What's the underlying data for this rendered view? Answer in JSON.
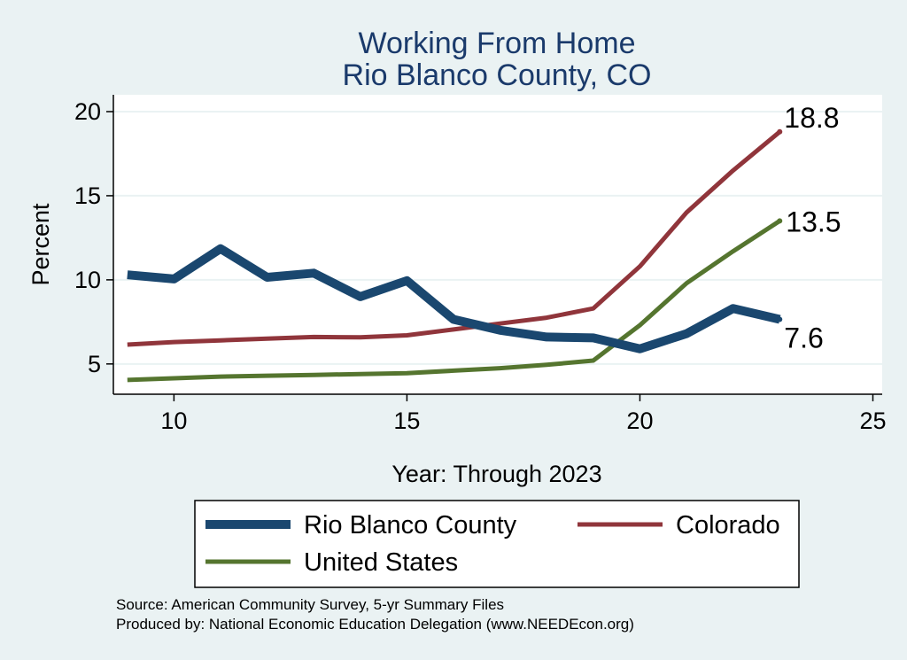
{
  "chart_data": {
    "type": "line",
    "title": [
      "Working From Home",
      "Rio Blanco County, CO"
    ],
    "xlabel": "Year: Through 2023",
    "ylabel": "Percent",
    "xlim": [
      8.7,
      25.2
    ],
    "ylim": [
      3.2,
      21.0
    ],
    "xticks": [
      10,
      15,
      20,
      25
    ],
    "yticks": [
      5,
      10,
      15,
      20
    ],
    "grid": true,
    "legend_position": "bottom",
    "series": [
      {
        "name": "Rio Blanco County",
        "color": "#1a476f",
        "width": 10,
        "x": [
          9,
          10,
          11,
          12,
          13,
          14,
          15,
          16,
          17,
          18,
          19,
          20,
          21,
          22,
          23
        ],
        "y": [
          10.3,
          10.05,
          11.85,
          10.15,
          10.4,
          9.0,
          9.95,
          7.65,
          7.0,
          6.6,
          6.55,
          5.9,
          6.8,
          8.3,
          7.65
        ],
        "end_label": "7.6"
      },
      {
        "name": "Colorado",
        "color": "#90353b",
        "width": 5,
        "x": [
          9,
          10,
          11,
          12,
          13,
          14,
          15,
          16,
          17,
          18,
          19,
          20,
          21,
          22,
          23
        ],
        "y": [
          6.15,
          6.3,
          6.4,
          6.5,
          6.6,
          6.58,
          6.7,
          7.05,
          7.4,
          7.75,
          8.3,
          10.8,
          14.0,
          16.5,
          18.8
        ],
        "end_label": "18.8"
      },
      {
        "name": "United States",
        "color": "#55752f",
        "width": 5,
        "x": [
          9,
          10,
          11,
          12,
          13,
          14,
          15,
          16,
          17,
          18,
          19,
          20,
          21,
          22,
          23
        ],
        "y": [
          4.05,
          4.15,
          4.25,
          4.3,
          4.35,
          4.4,
          4.45,
          4.6,
          4.75,
          4.95,
          5.2,
          7.3,
          9.8,
          11.7,
          13.5
        ],
        "end_label": "13.5"
      }
    ],
    "notes": [
      "Source: American Community Survey, 5-yr Summary Files",
      "Produced by: National Economic Education Delegation (www.NEEDEcon.org)"
    ]
  }
}
